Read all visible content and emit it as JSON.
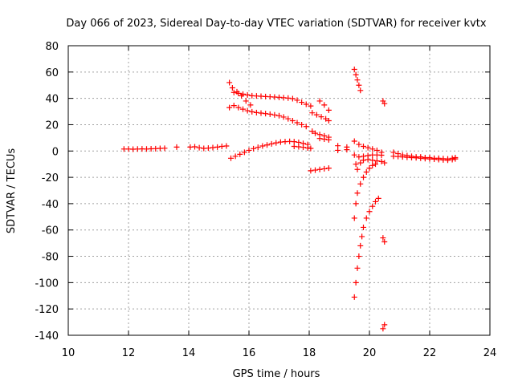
{
  "chart_data": {
    "type": "scatter",
    "title": "Day 066 of 2023, Sidereal Day-to-day VTEC variation (SDTVAR) for receiver kvtx",
    "xlabel": "GPS time / hours",
    "ylabel": "SDTVAR / TECUs",
    "xlim": [
      10,
      24
    ],
    "ylim": [
      -140,
      80
    ],
    "xticks": [
      10,
      12,
      14,
      16,
      18,
      20,
      22,
      24
    ],
    "yticks": [
      -140,
      -120,
      -100,
      -80,
      -60,
      -40,
      -20,
      0,
      20,
      40,
      60,
      80
    ],
    "grid": true,
    "marker": "plus",
    "color": "#ff0000",
    "series": [
      {
        "points": [
          [
            11.85,
            1.5
          ],
          [
            12.0,
            1.5
          ],
          [
            12.15,
            1.4
          ],
          [
            12.3,
            1.5
          ],
          [
            12.45,
            1.6
          ],
          [
            12.6,
            1.5
          ],
          [
            12.75,
            1.7
          ],
          [
            12.9,
            1.8
          ],
          [
            13.05,
            2.0
          ],
          [
            13.2,
            2.1
          ],
          [
            13.6,
            3.0
          ],
          [
            14.05,
            3.0
          ],
          [
            14.2,
            3.2
          ],
          [
            14.35,
            2.5
          ],
          [
            14.5,
            2.0
          ],
          [
            14.65,
            2.2
          ],
          [
            14.8,
            2.6
          ],
          [
            14.95,
            3.0
          ],
          [
            15.1,
            3.5
          ],
          [
            15.25,
            3.8
          ],
          [
            15.4,
            -5.5
          ],
          [
            15.55,
            -4.0
          ],
          [
            15.7,
            -2.5
          ],
          [
            15.85,
            -1.0
          ],
          [
            16.0,
            0.5
          ],
          [
            16.15,
            1.8
          ],
          [
            16.3,
            2.8
          ],
          [
            16.45,
            3.8
          ],
          [
            16.6,
            4.6
          ],
          [
            16.75,
            5.4
          ],
          [
            16.9,
            6.2
          ],
          [
            17.05,
            6.8
          ],
          [
            17.2,
            7.1
          ],
          [
            17.35,
            7.3
          ],
          [
            17.5,
            7.1
          ],
          [
            17.65,
            6.6
          ],
          [
            17.8,
            5.8
          ],
          [
            17.95,
            5.0
          ],
          [
            17.5,
            3.5
          ],
          [
            17.65,
            3.2
          ],
          [
            17.8,
            2.8
          ],
          [
            17.95,
            2.3
          ],
          [
            18.05,
            2.0
          ],
          [
            15.35,
            52.0
          ],
          [
            15.45,
            48.0
          ],
          [
            15.6,
            45.0
          ],
          [
            15.75,
            42.0
          ],
          [
            15.9,
            38.0
          ],
          [
            16.05,
            35.0
          ],
          [
            15.5,
            44.5
          ],
          [
            15.65,
            43.8
          ],
          [
            15.8,
            43.2
          ],
          [
            15.95,
            42.6
          ],
          [
            16.1,
            42.0
          ],
          [
            16.25,
            41.8
          ],
          [
            16.4,
            41.6
          ],
          [
            16.55,
            41.4
          ],
          [
            16.7,
            41.2
          ],
          [
            16.85,
            41.0
          ],
          [
            17.0,
            40.8
          ],
          [
            17.15,
            40.5
          ],
          [
            17.3,
            40.2
          ],
          [
            17.45,
            39.8
          ],
          [
            17.6,
            38.6
          ],
          [
            17.75,
            37.0
          ],
          [
            17.9,
            35.5
          ],
          [
            18.05,
            34.2
          ],
          [
            15.35,
            33.0
          ],
          [
            15.5,
            34.5
          ],
          [
            15.65,
            33.0
          ],
          [
            15.8,
            31.8
          ],
          [
            15.95,
            30.6
          ],
          [
            16.1,
            29.8
          ],
          [
            16.25,
            29.2
          ],
          [
            16.4,
            28.8
          ],
          [
            16.55,
            28.4
          ],
          [
            16.7,
            28.0
          ],
          [
            16.85,
            27.4
          ],
          [
            17.0,
            26.8
          ],
          [
            17.15,
            25.8
          ],
          [
            17.3,
            24.5
          ],
          [
            17.45,
            23.0
          ],
          [
            17.6,
            21.5
          ],
          [
            17.75,
            20.0
          ],
          [
            17.9,
            18.6
          ],
          [
            18.35,
            38.0
          ],
          [
            18.5,
            35.0
          ],
          [
            18.65,
            31.0
          ],
          [
            18.1,
            29.0
          ],
          [
            18.25,
            27.5
          ],
          [
            18.4,
            26.0
          ],
          [
            18.55,
            24.5
          ],
          [
            18.65,
            23.0
          ],
          [
            18.1,
            15.0
          ],
          [
            18.2,
            13.5
          ],
          [
            18.35,
            12.5
          ],
          [
            18.5,
            11.5
          ],
          [
            18.65,
            10.5
          ],
          [
            18.35,
            9.5
          ],
          [
            18.5,
            9.0
          ],
          [
            18.65,
            8.5
          ],
          [
            18.05,
            -15.0
          ],
          [
            18.2,
            -14.5
          ],
          [
            18.35,
            -14.0
          ],
          [
            18.5,
            -13.5
          ],
          [
            18.65,
            -13.0
          ],
          [
            18.95,
            4.0
          ],
          [
            18.95,
            0.5
          ],
          [
            19.25,
            3.0
          ],
          [
            19.25,
            1.0
          ],
          [
            19.5,
            62.0
          ],
          [
            19.55,
            58.0
          ],
          [
            19.6,
            54.0
          ],
          [
            19.65,
            50.0
          ],
          [
            19.7,
            46.0
          ],
          [
            19.5,
            7.5
          ],
          [
            19.65,
            5.0
          ],
          [
            19.8,
            3.5
          ],
          [
            19.95,
            2.5
          ],
          [
            20.1,
            1.5
          ],
          [
            20.25,
            0.5
          ],
          [
            20.4,
            -1.0
          ],
          [
            19.5,
            -3.0
          ],
          [
            19.65,
            -4.5
          ],
          [
            19.8,
            -4.0
          ],
          [
            19.95,
            -3.5
          ],
          [
            20.1,
            -3.0
          ],
          [
            20.25,
            -3.0
          ],
          [
            20.4,
            -3.2
          ],
          [
            19.55,
            -10.0
          ],
          [
            19.6,
            -14.0
          ],
          [
            19.7,
            -9.0
          ],
          [
            19.8,
            -7.0
          ],
          [
            19.95,
            -6.5
          ],
          [
            20.1,
            -7.0
          ],
          [
            20.25,
            -7.5
          ],
          [
            20.4,
            -8.0
          ],
          [
            19.5,
            -51.0
          ],
          [
            19.55,
            -40.0
          ],
          [
            19.6,
            -32.0
          ],
          [
            19.7,
            -25.0
          ],
          [
            19.8,
            -20.0
          ],
          [
            19.9,
            -16.0
          ],
          [
            20.0,
            -13.0
          ],
          [
            20.1,
            -11.0
          ],
          [
            20.2,
            -10.0
          ],
          [
            19.5,
            -111.0
          ],
          [
            19.55,
            -100.0
          ],
          [
            19.6,
            -89.0
          ],
          [
            19.65,
            -80.0
          ],
          [
            19.7,
            -72.0
          ],
          [
            19.75,
            -65.0
          ],
          [
            19.8,
            -58.0
          ],
          [
            19.9,
            -51.0
          ],
          [
            20.0,
            -46.0
          ],
          [
            20.1,
            -42.0
          ],
          [
            20.2,
            -38.5
          ],
          [
            20.3,
            -36.0
          ],
          [
            20.45,
            38.0
          ],
          [
            20.5,
            36.0
          ],
          [
            20.45,
            -66.0
          ],
          [
            20.5,
            -69.0
          ],
          [
            20.45,
            -135.0
          ],
          [
            20.5,
            -132.0
          ],
          [
            20.5,
            -9.0
          ],
          [
            20.8,
            -1.0
          ],
          [
            20.95,
            -2.0
          ],
          [
            21.1,
            -3.0
          ],
          [
            21.25,
            -3.5
          ],
          [
            21.4,
            -4.0
          ],
          [
            21.55,
            -4.5
          ],
          [
            21.7,
            -4.5
          ],
          [
            21.85,
            -5.0
          ],
          [
            22.0,
            -5.0
          ],
          [
            22.15,
            -5.5
          ],
          [
            22.3,
            -5.5
          ],
          [
            22.45,
            -5.8
          ],
          [
            22.6,
            -6.0
          ],
          [
            22.75,
            -5.5
          ],
          [
            22.85,
            -5.0
          ],
          [
            20.8,
            -4.0
          ],
          [
            20.95,
            -4.2
          ],
          [
            21.1,
            -4.5
          ],
          [
            21.25,
            -4.8
          ],
          [
            21.4,
            -5.0
          ],
          [
            21.55,
            -5.2
          ],
          [
            21.7,
            -5.5
          ],
          [
            21.85,
            -5.8
          ],
          [
            22.0,
            -6.0
          ],
          [
            22.15,
            -6.2
          ],
          [
            22.3,
            -6.5
          ],
          [
            22.45,
            -6.8
          ],
          [
            22.6,
            -7.0
          ],
          [
            22.75,
            -6.5
          ],
          [
            22.85,
            -6.0
          ]
        ]
      }
    ]
  }
}
